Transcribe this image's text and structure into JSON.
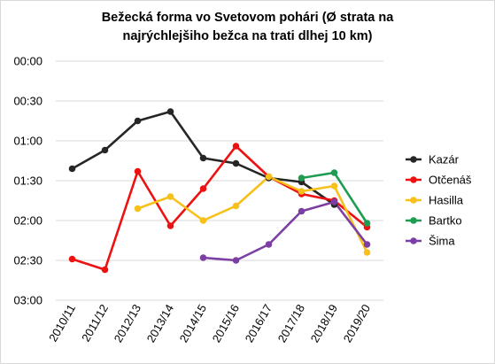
{
  "chart_data": {
    "type": "line",
    "title_lines": [
      "Bežecká forma vo Svetovom pohári (Ø strata na",
      "najrýchlejšiho bežca na trati dlhej 10 km)"
    ],
    "categories": [
      "2010/11",
      "2011/12",
      "2012/13",
      "2013/14",
      "2014/15",
      "2015/16",
      "2016/17",
      "2017/18",
      "2018/19",
      "2019/20"
    ],
    "y_ticks": [
      "00:00",
      "00:30",
      "01:00",
      "01:30",
      "02:00",
      "02:30",
      "03:00"
    ],
    "ylim": [
      0,
      180
    ],
    "y_unit": "seconds",
    "y_inverted": true,
    "grid": true,
    "legend_position": "right",
    "series": [
      {
        "name": "Kazár",
        "color": "#262626",
        "values": [
          81,
          67,
          45,
          38,
          73,
          77,
          88,
          91,
          108,
          null
        ]
      },
      {
        "name": "Otčenáš",
        "color": "#ee1111",
        "values": [
          149,
          157,
          83,
          124,
          96,
          64,
          87,
          100,
          105,
          125
        ]
      },
      {
        "name": "Hasilla",
        "color": "#f7c01a",
        "values": [
          null,
          null,
          111,
          102,
          120,
          109,
          87,
          98,
          94,
          144
        ]
      },
      {
        "name": "Bartko",
        "color": "#1f9c52",
        "values": [
          null,
          null,
          null,
          null,
          null,
          null,
          null,
          88,
          84,
          122
        ]
      },
      {
        "name": "Šima",
        "color": "#7c3fa3",
        "values": [
          null,
          null,
          null,
          null,
          148,
          150,
          138,
          113,
          106,
          138
        ]
      }
    ]
  }
}
